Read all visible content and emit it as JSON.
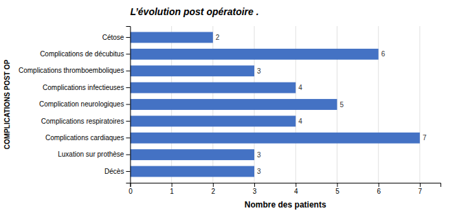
{
  "chart_data": {
    "type": "bar",
    "orientation": "horizontal",
    "title": "L’évolution post opératoire .",
    "xlabel": "Nombre des patients",
    "ylabel": "COMPLICATIONS POST OP",
    "categories": [
      "Décès",
      "Luxation sur prothèse",
      "Complications cardiaques",
      "Complications respiratoires",
      "Complication neurologiques",
      "Complications infectieuses",
      "Complications thromboemboliques",
      "Complications de décubitus",
      "Cétose"
    ],
    "values": [
      3,
      3,
      7,
      4,
      5,
      4,
      3,
      6,
      2
    ],
    "color": "#4472C4",
    "xlim": [
      0,
      7.5
    ],
    "xticks": [
      0,
      1,
      2,
      3,
      4,
      5,
      6,
      7
    ],
    "grid": true,
    "data_labels": true
  }
}
